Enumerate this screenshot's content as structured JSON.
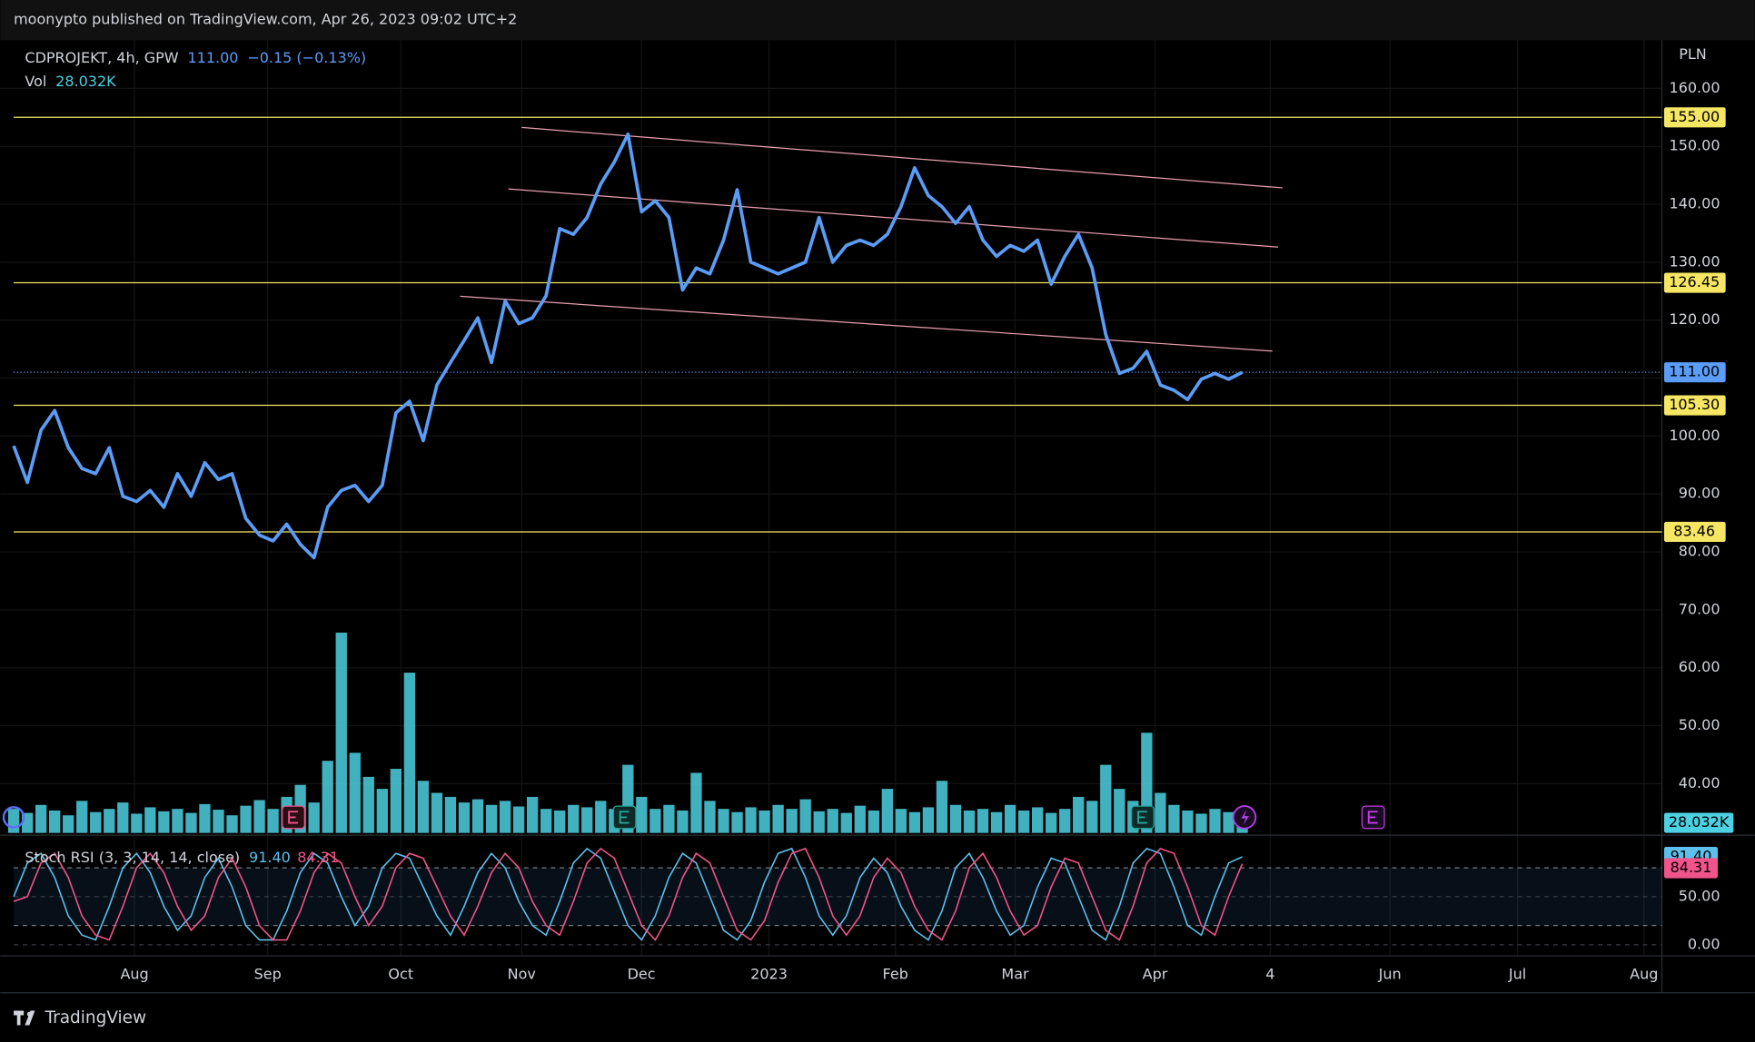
{
  "header": {
    "publisher": "moonypto published on TradingView.com, Apr 26, 2023 09:02 UTC+2",
    "footer": "TradingView"
  },
  "chart_data": {
    "type": "line",
    "symbol": "CDPROJEKT, 4h, GPW",
    "change": "−0.15 (−0.13%)",
    "currency": "PLN",
    "xtick_labels": [
      "Aug",
      "Sep",
      "Oct",
      "Nov",
      "Dec",
      "2023",
      "Feb",
      "Mar",
      "Apr",
      "4",
      "Jun",
      "Jul",
      "Aug"
    ],
    "series": [
      {
        "color": "#5b9cf6",
        "values": [
          98.3,
          92,
          101,
          104.4,
          98,
          94.4,
          93.5,
          98,
          89.6,
          88.7,
          90.6,
          87.7,
          93.5,
          89.6,
          95.4,
          92.5,
          93.5,
          85.8,
          82.9,
          81.9,
          84.8,
          81.3,
          79,
          87.7,
          90.6,
          91.5,
          88.7,
          91.5,
          104,
          106,
          99.2,
          108.8,
          112.7,
          116.5,
          120.4,
          112.7,
          123.3,
          119.4,
          120.4,
          124.2,
          135.8,
          134.8,
          137.7,
          143.5,
          147.3,
          152.1,
          138.7,
          140.6,
          137.7,
          125.2,
          129,
          128,
          133.8,
          142.5,
          130,
          129,
          128,
          129,
          130,
          137.7,
          130,
          132.9,
          133.8,
          132.9,
          134.8,
          139.6,
          146.3,
          141.5,
          139.6,
          136.7,
          139.6,
          133.8,
          131,
          132.9,
          131.9,
          133.8,
          126.2,
          131,
          134.8,
          129,
          117.5,
          110.8,
          111.7,
          114.6,
          108.8,
          107.9,
          106.3,
          109.8,
          110.8,
          109.8,
          111
        ]
      }
    ],
    "ylim": [
      31.5,
      168.5
    ],
    "yticks": [
      {
        "value": 40,
        "label": "40.00"
      },
      {
        "value": 50,
        "label": "50.00"
      },
      {
        "value": 60,
        "label": "60.00"
      },
      {
        "value": 70,
        "label": "70.00"
      },
      {
        "value": 80,
        "label": "80.00"
      },
      {
        "value": 90,
        "label": "90.00"
      },
      {
        "value": 100,
        "label": "100.00"
      },
      {
        "value": 110,
        "label": "110.00"
      },
      {
        "value": 120,
        "label": "120.00"
      },
      {
        "value": 130,
        "label": "130.00"
      },
      {
        "value": 140,
        "label": "140.00"
      },
      {
        "value": 150,
        "label": "150.00"
      },
      {
        "value": 160,
        "label": "160.00"
      }
    ],
    "levels": [
      {
        "value": 155,
        "label": "155.00"
      },
      {
        "value": 126.45,
        "label": "126.45"
      },
      {
        "value": 105.3,
        "label": "105.30"
      },
      {
        "value": 83.46,
        "label": "83.46"
      }
    ],
    "level_color": "#f5e663",
    "last_price": {
      "value": 111,
      "label": "111.00"
    },
    "volume": {
      "name": "Vol",
      "last_label": "28.032K",
      "color": "#4dd0e1",
      "ylim": [
        0,
        300000
      ],
      "values": [
        30000,
        25000,
        35000,
        28000,
        22000,
        40000,
        26000,
        30000,
        38000,
        24000,
        32000,
        27000,
        30000,
        25000,
        36000,
        29000,
        22000,
        34000,
        41000,
        30000,
        45000,
        60000,
        38000,
        90000,
        250000,
        100000,
        70000,
        55000,
        80000,
        200000,
        65000,
        50000,
        45000,
        38000,
        42000,
        35000,
        40000,
        33000,
        45000,
        30000,
        28000,
        35000,
        32000,
        40000,
        30000,
        85000,
        45000,
        30000,
        35000,
        28000,
        75000,
        40000,
        30000,
        26000,
        32000,
        28000,
        35000,
        30000,
        42000,
        27000,
        30000,
        25000,
        34000,
        28000,
        55000,
        30000,
        26000,
        32000,
        65000,
        35000,
        28000,
        30000,
        26000,
        35000,
        28000,
        32000,
        25000,
        30000,
        45000,
        40000,
        85000,
        55000,
        40000,
        125000,
        50000,
        35000,
        28000,
        24000,
        30000,
        26000,
        28032
      ]
    },
    "stoch": {
      "name": "Stoch RSI (3, 3, 14, 14, close)",
      "ylim": [
        -5.8,
        110.5
      ],
      "yticks": [
        {
          "value": 50,
          "label": "50.00"
        },
        {
          "value": 0,
          "label": "0.00"
        }
      ],
      "bands": [
        20,
        80
      ],
      "series": [
        {
          "color": "#5bc0eb",
          "last_label": "91.40",
          "values": [
            50,
            85,
            95,
            70,
            30,
            10,
            5,
            40,
            80,
            95,
            75,
            40,
            15,
            30,
            70,
            90,
            60,
            20,
            5,
            5,
            35,
            75,
            95,
            85,
            50,
            20,
            40,
            80,
            95,
            90,
            60,
            30,
            10,
            40,
            75,
            95,
            80,
            45,
            20,
            10,
            45,
            85,
            100,
            90,
            55,
            20,
            5,
            30,
            70,
            95,
            85,
            50,
            15,
            5,
            25,
            65,
            95,
            100,
            70,
            30,
            10,
            30,
            70,
            90,
            75,
            40,
            15,
            5,
            35,
            80,
            95,
            70,
            35,
            10,
            20,
            60,
            90,
            85,
            50,
            15,
            5,
            40,
            85,
            100,
            95,
            60,
            20,
            10,
            50,
            85,
            91.4
          ]
        },
        {
          "color": "#f0548b",
          "last_label": "84.31",
          "values": [
            45,
            50,
            85,
            95,
            70,
            30,
            10,
            5,
            40,
            80,
            95,
            75,
            40,
            15,
            30,
            70,
            90,
            60,
            20,
            5,
            5,
            35,
            75,
            95,
            85,
            50,
            20,
            40,
            80,
            95,
            90,
            60,
            30,
            10,
            40,
            75,
            95,
            80,
            45,
            20,
            10,
            45,
            85,
            100,
            90,
            55,
            20,
            5,
            30,
            70,
            95,
            85,
            50,
            15,
            5,
            25,
            65,
            95,
            100,
            70,
            30,
            10,
            30,
            70,
            90,
            75,
            40,
            15,
            5,
            35,
            80,
            95,
            70,
            35,
            10,
            20,
            60,
            90,
            85,
            50,
            15,
            5,
            40,
            85,
            100,
            95,
            60,
            20,
            10,
            50,
            84.31
          ]
        }
      ]
    }
  }
}
